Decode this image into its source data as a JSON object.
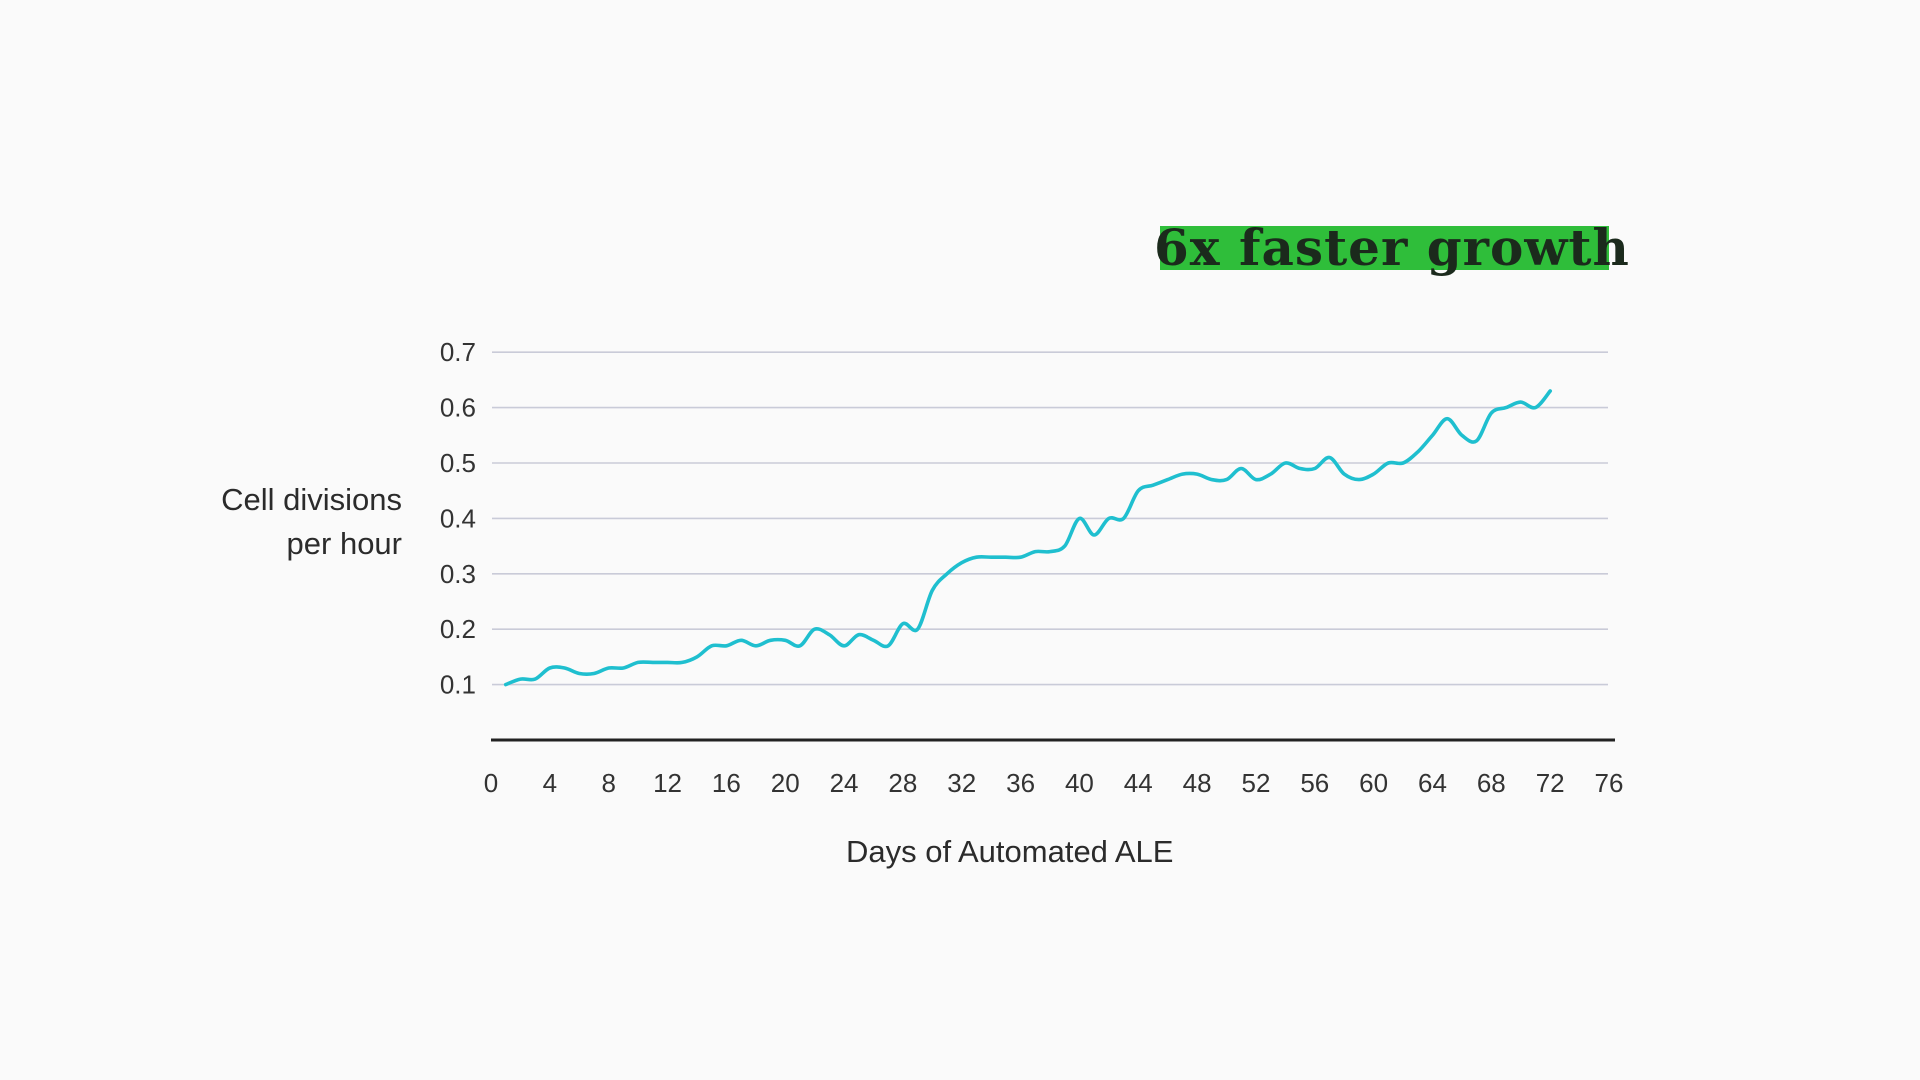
{
  "headline": "6x faster growth",
  "colors": {
    "background": "#fafafa",
    "headline_highlight": "#2fbe3a",
    "line": "#1fbfcf",
    "grid": "#c9cbd8",
    "axis": "#222222"
  },
  "chart_data": {
    "type": "line",
    "xlabel": "Days of Automated ALE",
    "ylabel": [
      "Cell divisions",
      "per hour"
    ],
    "xlim": [
      0,
      76
    ],
    "ylim": [
      0,
      0.7
    ],
    "xticks": [
      "0",
      "4",
      "8",
      "12",
      "16",
      "20",
      "24",
      "28",
      "32",
      "36",
      "40",
      "44",
      "48",
      "52",
      "56",
      "60",
      "64",
      "68",
      "72",
      "76"
    ],
    "yticks": [
      "0.1",
      "0.2",
      "0.3",
      "0.4",
      "0.5",
      "0.6",
      "0.7"
    ],
    "grid": true,
    "series": [
      {
        "color": "#1fbfcf",
        "x": [
          1,
          2,
          3,
          4,
          5,
          6,
          7,
          8,
          9,
          10,
          11,
          12,
          13,
          14,
          15,
          16,
          17,
          18,
          19,
          20,
          21,
          22,
          23,
          24,
          25,
          26,
          27,
          28,
          29,
          30,
          31,
          32,
          33,
          34,
          35,
          36,
          37,
          38,
          39,
          40,
          41,
          42,
          43,
          44,
          45,
          46,
          47,
          48,
          49,
          50,
          51,
          52,
          53,
          54,
          55,
          56,
          57,
          58,
          59,
          60,
          61,
          62,
          63,
          64,
          65,
          66,
          67,
          68,
          69,
          70,
          71,
          72
        ],
        "y": [
          0.1,
          0.11,
          0.11,
          0.13,
          0.13,
          0.12,
          0.12,
          0.13,
          0.13,
          0.14,
          0.14,
          0.14,
          0.14,
          0.15,
          0.17,
          0.17,
          0.18,
          0.17,
          0.18,
          0.18,
          0.17,
          0.2,
          0.19,
          0.17,
          0.19,
          0.18,
          0.17,
          0.21,
          0.2,
          0.27,
          0.3,
          0.32,
          0.33,
          0.33,
          0.33,
          0.33,
          0.34,
          0.34,
          0.35,
          0.4,
          0.37,
          0.4,
          0.4,
          0.45,
          0.46,
          0.47,
          0.48,
          0.48,
          0.47,
          0.47,
          0.49,
          0.47,
          0.48,
          0.5,
          0.49,
          0.49,
          0.51,
          0.48,
          0.47,
          0.48,
          0.5,
          0.5,
          0.52,
          0.55,
          0.58,
          0.55,
          0.54,
          0.59,
          0.6,
          0.61,
          0.6,
          0.63
        ]
      }
    ]
  }
}
